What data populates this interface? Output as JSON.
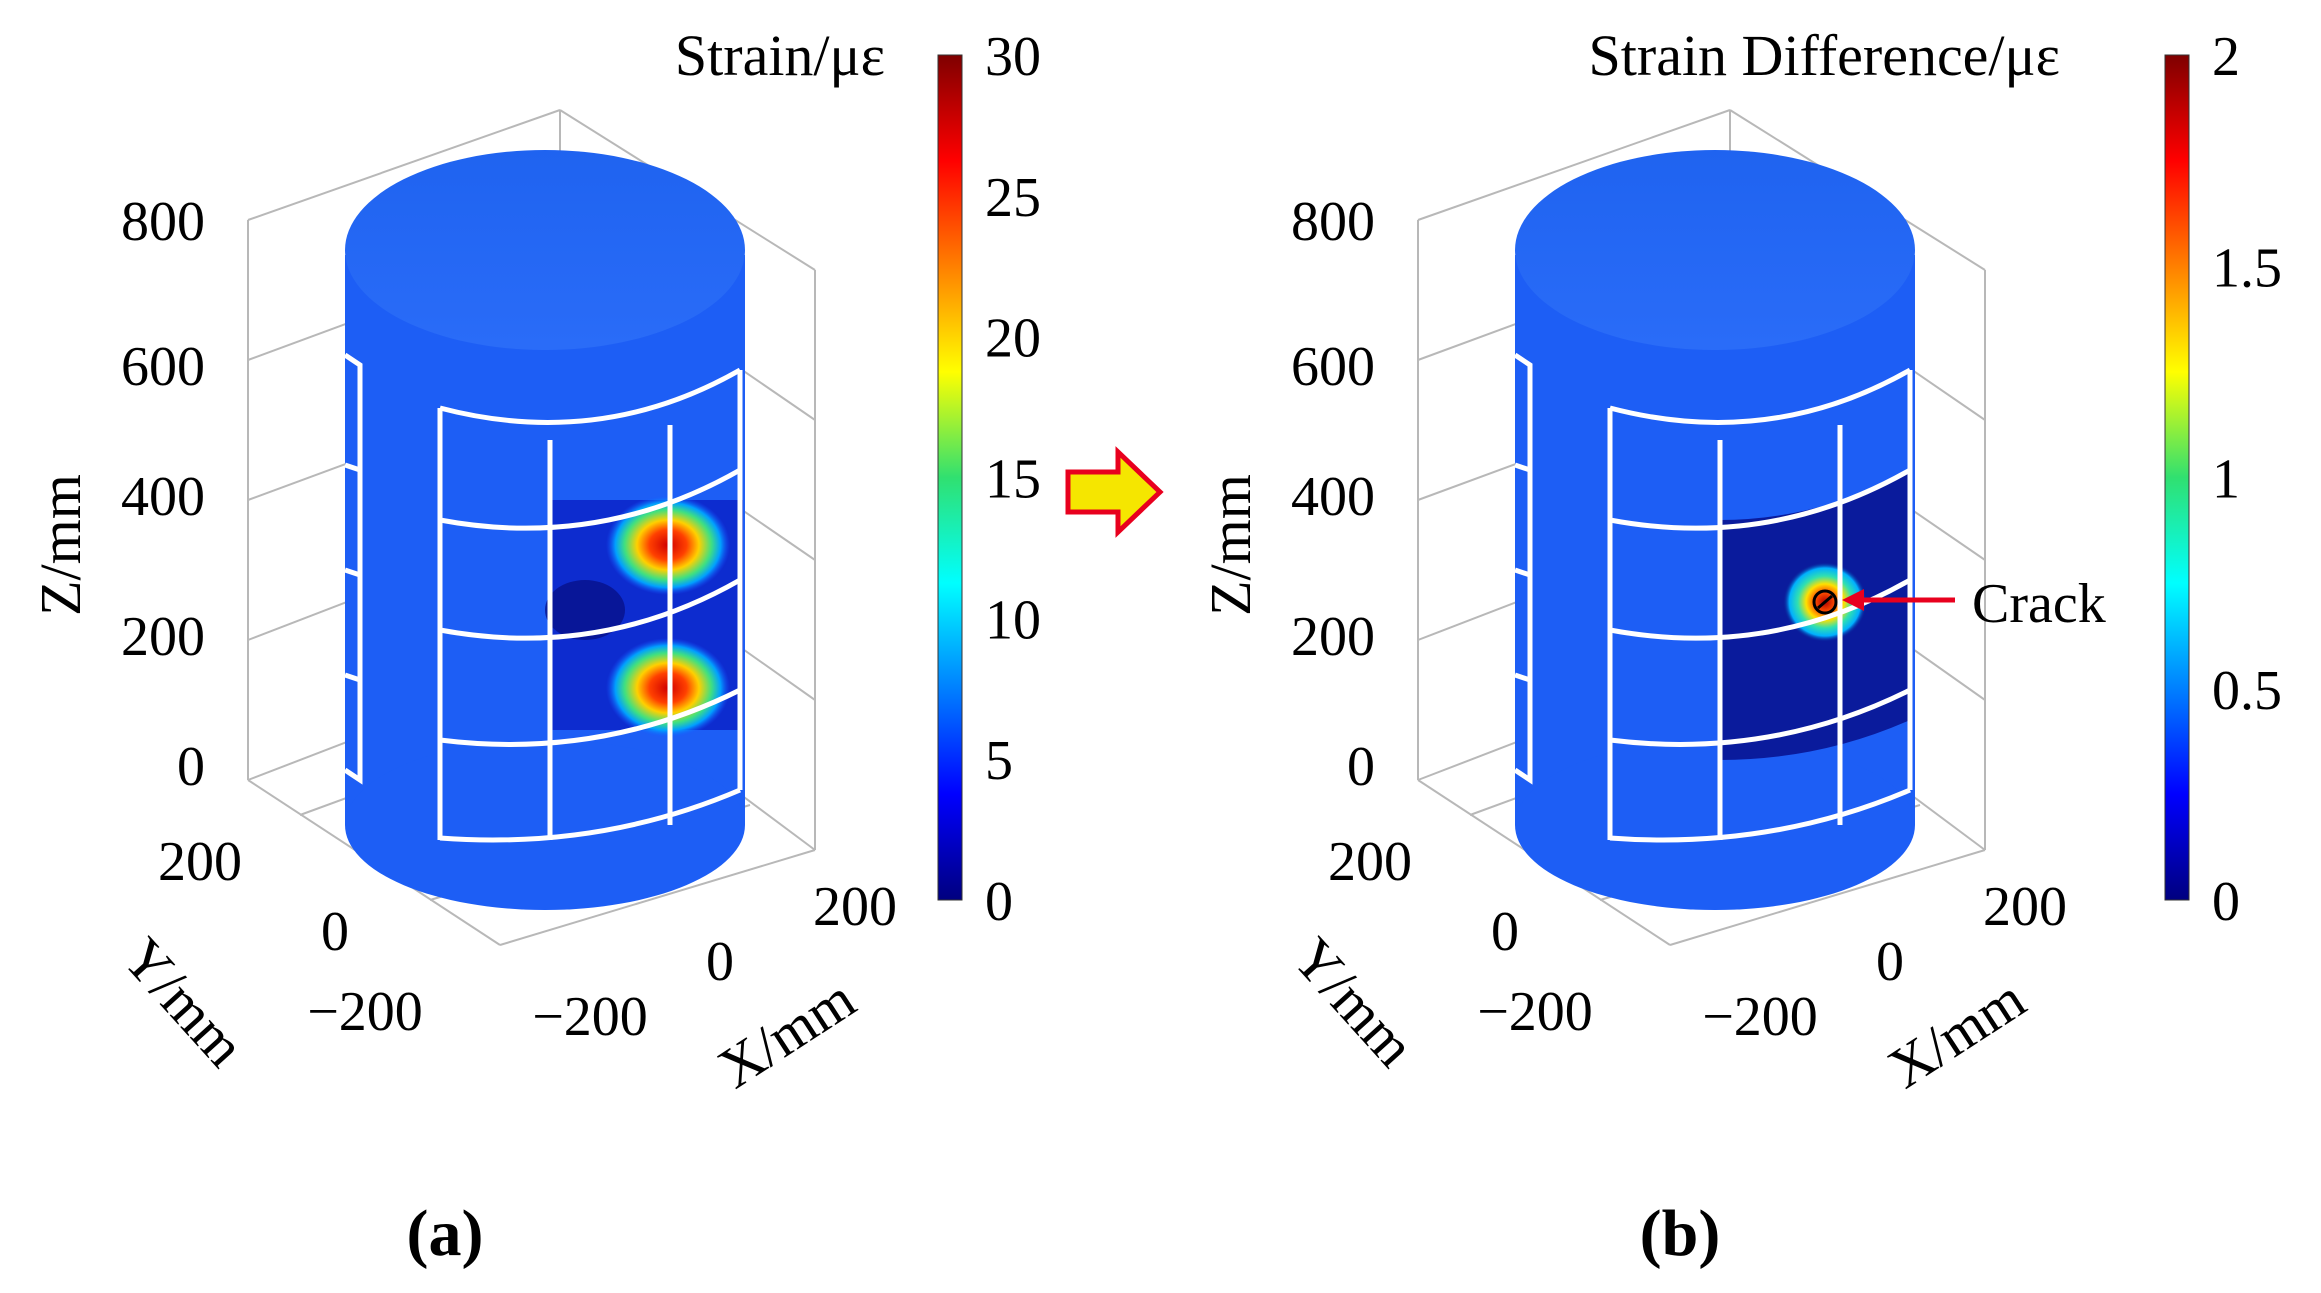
{
  "figure": {
    "arrow_icon": "right-arrow-icon",
    "arrow_color": "#f5e600",
    "arrow_outline": "#e8001e"
  },
  "chart_data": [
    {
      "type": "surface3d",
      "panel_label": "(a)",
      "title": "Strain/με",
      "xlabel": "X/mm",
      "ylabel": "Y/mm",
      "zlabel": "Z/mm",
      "x_ticks": [
        "−200",
        "0",
        "200"
      ],
      "y_ticks": [
        "−200",
        "0",
        "200"
      ],
      "z_ticks": [
        "0",
        "200",
        "400",
        "600",
        "800"
      ],
      "zlim": [
        0,
        800
      ],
      "colorbar": {
        "ticks": [
          "0",
          "5",
          "10",
          "15",
          "20",
          "25",
          "30"
        ],
        "range": [
          0,
          30
        ],
        "colormap": "jet"
      },
      "hotspots": [
        {
          "z_mm": 330,
          "strain": 30
        },
        {
          "z_mm": 180,
          "strain": 30
        }
      ],
      "background_strain": 5
    },
    {
      "type": "surface3d",
      "panel_label": "(b)",
      "title": "Strain Difference/με",
      "xlabel": "X/mm",
      "ylabel": "Y/mm",
      "zlabel": "Z/mm",
      "x_ticks": [
        "−200",
        "0",
        "200"
      ],
      "y_ticks": [
        "−200",
        "0",
        "200"
      ],
      "z_ticks": [
        "0",
        "200",
        "400",
        "600",
        "800"
      ],
      "zlim": [
        0,
        800
      ],
      "colorbar": {
        "ticks": [
          "0",
          "0.5",
          "1",
          "1.5",
          "2"
        ],
        "range": [
          0,
          2
        ],
        "colormap": "jet"
      },
      "annotation": {
        "text": "Crack",
        "z_mm": 255,
        "color": "#e8001e"
      },
      "hotspots": [
        {
          "z_mm": 255,
          "strain": 2
        }
      ],
      "background_strain": 0.3
    }
  ]
}
